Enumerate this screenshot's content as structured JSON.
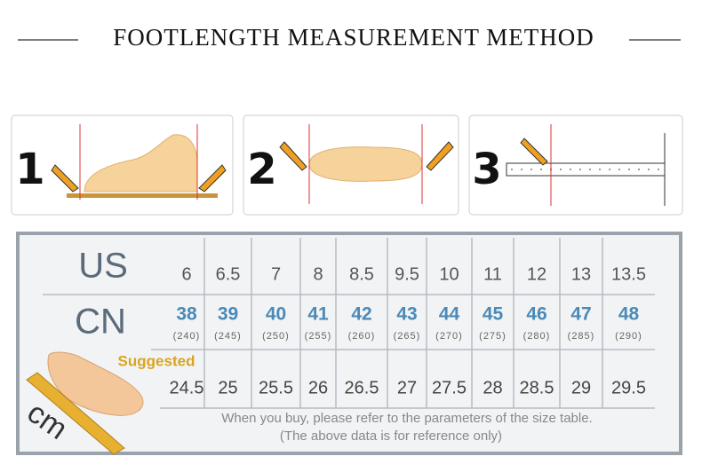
{
  "title": "FOOTLENGTH MEASUREMENT METHOD",
  "steps": [
    "1",
    "2",
    "3"
  ],
  "table": {
    "us_label": "US",
    "cn_label": "CN",
    "suggested_label": "Suggested",
    "cm_label": "cm",
    "us": [
      "6",
      "6.5",
      "7",
      "8",
      "8.5",
      "9.5",
      "10",
      "11",
      "12",
      "13",
      "13.5"
    ],
    "cn": [
      "38",
      "39",
      "40",
      "41",
      "42",
      "43",
      "44",
      "45",
      "46",
      "47",
      "48"
    ],
    "cn_mm": [
      "(240)",
      "(245)",
      "(250)",
      "(255)",
      "(260)",
      "(265)",
      "(270)",
      "(275)",
      "(280)",
      "(285)",
      "(290)"
    ],
    "cm": [
      "24.5",
      "25",
      "25.5",
      "26",
      "26.5",
      "27",
      "27.5",
      "28",
      "28.5",
      "29",
      "29.5"
    ]
  },
  "notes": [
    "When you buy, please refer to the parameters of the size table.",
    "(The above data is for reference only)"
  ]
}
